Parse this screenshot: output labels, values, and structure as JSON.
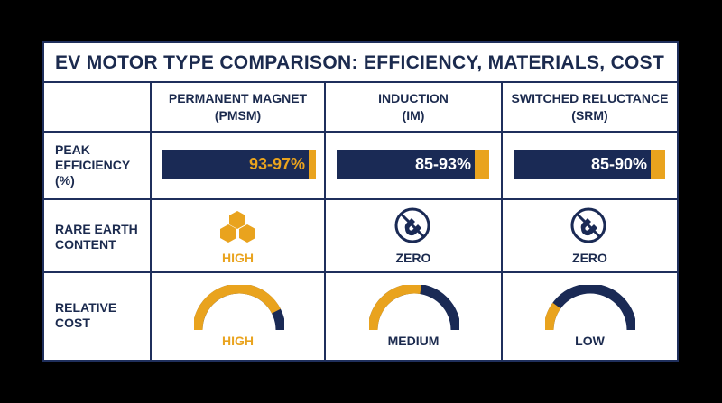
{
  "title": "EV MOTOR TYPE COMPARISON: EFFICIENCY, MATERIALS, COST",
  "columns": [
    {
      "name_line1": "PERMANENT MAGNET",
      "name_line2": "(PMSM)"
    },
    {
      "name_line1": "INDUCTION",
      "name_line2": "(IM)"
    },
    {
      "name_line1": "SWITCHED RELUCTANCE",
      "name_line2": "(SRM)"
    }
  ],
  "rows": {
    "efficiency": {
      "label_lines": [
        "PEAK",
        "EFFICIENCY",
        "(%)"
      ]
    },
    "rare_earth": {
      "label_lines": [
        "RARE EARTH",
        "CONTENT"
      ]
    },
    "cost": {
      "label_lines": [
        "RELATIVE",
        "COST"
      ]
    }
  },
  "efficiency_values": [
    "93-97%",
    "85-93%",
    "85-90%"
  ],
  "rare_earth_values": [
    "HIGH",
    "ZERO",
    "ZERO"
  ],
  "rare_earth_icons": [
    "hexagon-cluster-icon",
    "no-magnet-icon",
    "no-magnet-icon"
  ],
  "cost_values": [
    "HIGH",
    "MEDIUM",
    "LOW"
  ],
  "cost_gauge_fill": [
    0.85,
    0.55,
    0.2
  ],
  "colors": {
    "navy": "#1a2a55",
    "gold": "#e9a31e",
    "border": "#1f2f5c"
  }
}
